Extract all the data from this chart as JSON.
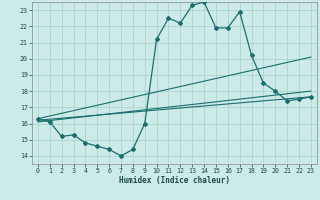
{
  "title": "",
  "xlabel": "Humidex (Indice chaleur)",
  "ylabel": "",
  "background_color": "#cceae7",
  "grid_color": "#aed4d0",
  "line_color": "#1a6e6e",
  "xlim": [
    -0.5,
    23.5
  ],
  "ylim": [
    13.5,
    23.5
  ],
  "xticks": [
    0,
    1,
    2,
    3,
    4,
    5,
    6,
    7,
    8,
    9,
    10,
    11,
    12,
    13,
    14,
    15,
    16,
    17,
    18,
    19,
    20,
    21,
    22,
    23
  ],
  "yticks": [
    14,
    15,
    16,
    17,
    18,
    19,
    20,
    21,
    22,
    23
  ],
  "series0_x": [
    0,
    1,
    2,
    3,
    4,
    5,
    6,
    7,
    8,
    9,
    10,
    11,
    12,
    13,
    14,
    15,
    16,
    17,
    18,
    19,
    20,
    21,
    22,
    23
  ],
  "series0_y": [
    16.3,
    16.1,
    15.2,
    15.3,
    14.8,
    14.6,
    14.4,
    14.0,
    14.4,
    16.0,
    21.2,
    22.5,
    22.2,
    23.3,
    23.5,
    21.9,
    21.9,
    22.9,
    20.2,
    18.5,
    18.0,
    17.4,
    17.5,
    17.65
  ],
  "trend_lines": [
    {
      "x": [
        0,
        23
      ],
      "y": [
        16.3,
        20.1
      ]
    },
    {
      "x": [
        0,
        23
      ],
      "y": [
        16.1,
        18.0
      ]
    },
    {
      "x": [
        0,
        23
      ],
      "y": [
        16.2,
        17.65
      ]
    }
  ]
}
